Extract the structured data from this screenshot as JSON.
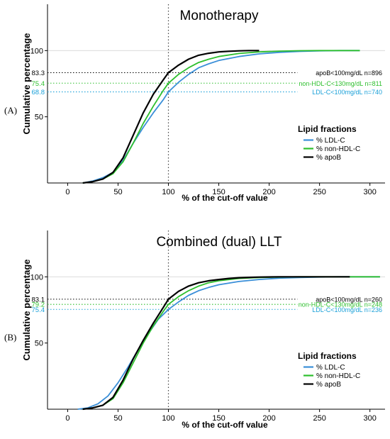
{
  "colors": {
    "ldl": "#3a8fd8",
    "nonhdl": "#2dbf2d",
    "apob": "#000000",
    "axis": "#000000",
    "grid": "#dcdcdc",
    "label_apob": "#000000",
    "label_nonhdl": "#2dbf2d",
    "label_ldl": "#1aa0d8"
  },
  "chart_data": [
    {
      "type": "line",
      "panel_label": "(A)",
      "title": "Monotherapy",
      "xlabel": "% of the cut-off value",
      "ylabel": "Cumulative percentage",
      "xlim": [
        -20,
        315
      ],
      "ylim": [
        0,
        135
      ],
      "xticks": [
        0,
        50,
        100,
        150,
        200,
        250,
        300
      ],
      "yticks": [
        50,
        100
      ],
      "grid": "horizontal at 100",
      "legend_title": "Lipid fractions",
      "legend_position": "lower-right",
      "cutoff_x": 100,
      "annotations": [
        {
          "y": 83.3,
          "y_label": "83.3",
          "text": "apoB<100mg/dL n=896",
          "color_key": "label_apob"
        },
        {
          "y": 75.4,
          "y_label": "75.4",
          "text": "non-HDL-C<130mg/dL n=811",
          "color_key": "label_nonhdl"
        },
        {
          "y": 68.8,
          "y_label": "68.8",
          "text": "LDL-C<100mg/dL n=740",
          "color_key": "label_ldl"
        }
      ],
      "series": [
        {
          "name": "% LDL-C",
          "color_key": "ldl",
          "x": [
            15,
            25,
            35,
            45,
            55,
            65,
            75,
            85,
            95,
            100,
            110,
            120,
            130,
            140,
            150,
            170,
            190,
            210,
            230,
            250,
            270,
            290
          ],
          "y": [
            0,
            1.5,
            4,
            8,
            17,
            30,
            42,
            53,
            63,
            68.8,
            76,
            82,
            87,
            90,
            92.5,
            95.5,
            97.5,
            98.7,
            99.4,
            99.8,
            100,
            100
          ]
        },
        {
          "name": "% non-HDL-C",
          "color_key": "nonhdl",
          "x": [
            15,
            25,
            35,
            45,
            55,
            65,
            75,
            85,
            95,
            100,
            110,
            120,
            130,
            140,
            150,
            170,
            190,
            210,
            230,
            250,
            270,
            290
          ],
          "y": [
            0,
            1,
            3,
            7,
            16,
            30,
            45,
            58,
            70,
            75.4,
            82,
            87,
            91,
            93.5,
            95.5,
            97.8,
            99,
            99.6,
            99.9,
            100,
            100,
            100
          ]
        },
        {
          "name": "% apoB",
          "color_key": "apob",
          "x": [
            15,
            25,
            35,
            45,
            55,
            65,
            75,
            85,
            95,
            100,
            110,
            120,
            130,
            140,
            150,
            160,
            170,
            180,
            190
          ],
          "y": [
            0,
            1,
            3,
            8,
            19,
            36,
            53,
            67,
            78,
            83.3,
            89,
            93.5,
            96.5,
            98,
            99,
            99.5,
            99.8,
            100,
            100
          ]
        }
      ]
    },
    {
      "type": "line",
      "panel_label": "(B)",
      "title": "Combined (dual) LLT",
      "xlabel": "% of the cut-off value",
      "ylabel": "Cumulative percentage",
      "xlim": [
        -20,
        315
      ],
      "ylim": [
        0,
        135
      ],
      "xticks": [
        0,
        50,
        100,
        150,
        200,
        250,
        300
      ],
      "yticks": [
        50,
        100
      ],
      "grid": "horizontal at 100",
      "legend_title": "Lipid fractions",
      "legend_position": "lower-right",
      "cutoff_x": 100,
      "annotations": [
        {
          "y": 83.1,
          "y_label": "83.1",
          "text": "apoB<100mg/dL n=260",
          "color_key": "label_apob"
        },
        {
          "y": 79.2,
          "y_label": "79.2",
          "text": "non-HDL-C<130mg/dL n=248",
          "color_key": "label_nonhdl"
        },
        {
          "y": 75.4,
          "y_label": "75.4",
          "text": "LDL-C<100mg/dL n=236",
          "color_key": "label_ldl"
        }
      ],
      "series": [
        {
          "name": "% LDL-C",
          "color_key": "ldl",
          "x": [
            10,
            20,
            30,
            40,
            50,
            60,
            70,
            80,
            90,
            100,
            110,
            120,
            130,
            140,
            150,
            170,
            190,
            210,
            230,
            250,
            270,
            290,
            310
          ],
          "y": [
            0,
            1,
            4,
            10,
            20,
            32,
            45,
            57,
            68,
            75.4,
            81,
            86,
            89.5,
            92,
            94,
            96.5,
            98,
            99,
            99.5,
            99.8,
            100,
            100,
            100
          ]
        },
        {
          "name": "% non-HDL-C",
          "color_key": "nonhdl",
          "x": [
            15,
            25,
            35,
            45,
            55,
            65,
            75,
            85,
            95,
            100,
            110,
            120,
            130,
            140,
            150,
            170,
            190,
            210,
            230,
            250,
            270,
            290,
            310
          ],
          "y": [
            0,
            1,
            3,
            8,
            20,
            35,
            50,
            63,
            74,
            79.2,
            85,
            89.5,
            93,
            95.5,
            97,
            98.8,
            99.5,
            99.8,
            100,
            100,
            100,
            100,
            100
          ]
        },
        {
          "name": "% apoB",
          "color_key": "apob",
          "x": [
            15,
            25,
            35,
            45,
            55,
            65,
            75,
            85,
            95,
            100,
            110,
            120,
            130,
            140,
            150,
            160,
            170,
            180,
            190,
            210,
            230,
            250,
            280
          ],
          "y": [
            0,
            1,
            3,
            9,
            22,
            38,
            52,
            65,
            77,
            83.1,
            89,
            93,
            95.5,
            97,
            98,
            98.8,
            99.3,
            99.6,
            99.8,
            100,
            100,
            100,
            100
          ]
        }
      ]
    }
  ]
}
